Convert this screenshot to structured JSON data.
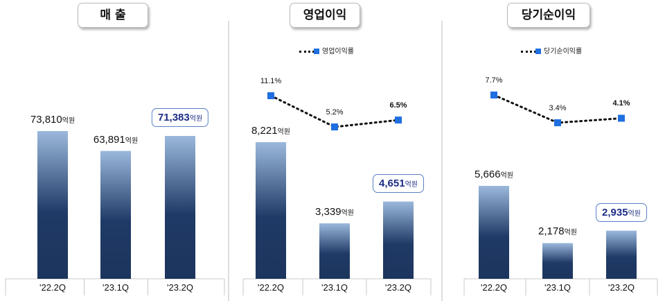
{
  "chart_data": [
    {
      "type": "bar",
      "title": "매 출",
      "categories": [
        "'22.2Q",
        "'23.1Q",
        "'23.2Q"
      ],
      "values": [
        73810,
        63891,
        71383
      ],
      "value_labels": [
        "73,810",
        "63,891",
        "71,383"
      ],
      "unit": "억원",
      "highlight_index": 2
    },
    {
      "type": "bar",
      "title": "영업이익",
      "categories": [
        "'22.2Q",
        "'23.1Q",
        "'23.2Q"
      ],
      "values": [
        8221,
        3339,
        4651
      ],
      "value_labels": [
        "8,221",
        "3,339",
        "4,651"
      ],
      "unit": "억원",
      "highlight_index": 2,
      "line_series": {
        "name": "영업이익률",
        "values": [
          11.1,
          5.2,
          6.5
        ],
        "labels": [
          "11.1%",
          "5.2%",
          "6.5%"
        ]
      }
    },
    {
      "type": "bar",
      "title": "당기순이익",
      "categories": [
        "'22.2Q",
        "'23.1Q",
        "'23.2Q"
      ],
      "values": [
        5666,
        2178,
        2935
      ],
      "value_labels": [
        "5,666",
        "2,178",
        "2,935"
      ],
      "unit": "억원",
      "highlight_index": 2,
      "line_series": {
        "name": "당기순이익률",
        "values": [
          7.7,
          3.4,
          4.1
        ],
        "labels": [
          "7.7%",
          "3.4%",
          "4.1%"
        ]
      }
    }
  ],
  "colors": {
    "bar_top": "#9bb8dc",
    "bar_bottom": "#1f3a66",
    "line": "#111111",
    "marker": "#1f6fe0",
    "highlight_text": "#1e2d86",
    "highlight_border": "#5a7fc8",
    "divider": "#bdbdbd"
  }
}
